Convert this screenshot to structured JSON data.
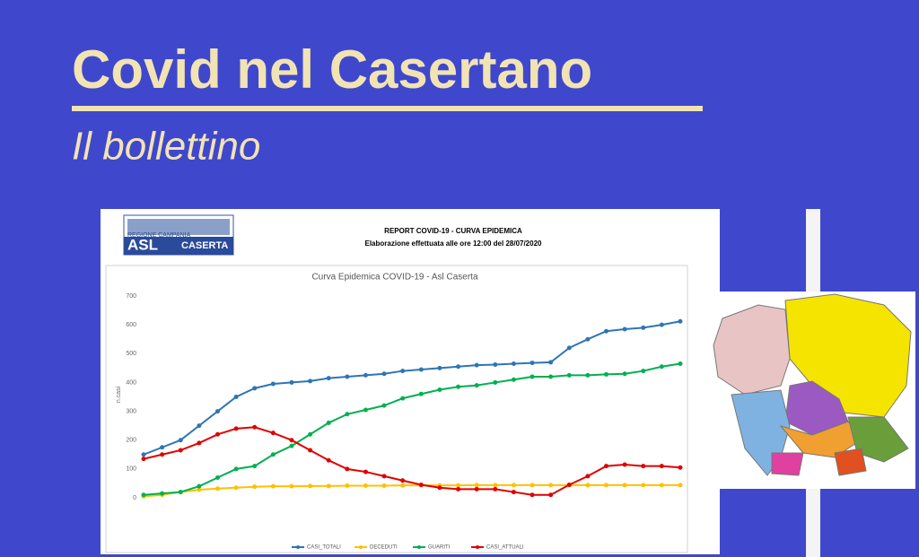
{
  "header": {
    "title": "Covid nel Casertano",
    "subtitle": "Il bollettino"
  },
  "report": {
    "logo_region": "REGIONE CAMPANIA",
    "logo_asl": "ASL",
    "logo_city": "CASERTA",
    "heading": "REPORT COVID-19 - CURVA EPIDEMICA",
    "subheading": "Elaborazione effettuata alle ore 12:00 del 28/07/2020"
  },
  "chart_data": {
    "type": "line",
    "title": "Curva Epidemica COVID-19 - Asl Caserta",
    "y_label": "n.casi",
    "categories": [
      null,
      null,
      null,
      null,
      null,
      null,
      null,
      null,
      null,
      null,
      null,
      null,
      null,
      null,
      null,
      null,
      null,
      null,
      null,
      null,
      null,
      null,
      null,
      null,
      null,
      null,
      null,
      null,
      null,
      null
    ],
    "ylim": [
      0,
      700
    ],
    "yticks": [
      0,
      100,
      200,
      300,
      400,
      500,
      600,
      700
    ],
    "grid": false,
    "legend": "bottom",
    "series": [
      {
        "name": "CASI_TOTALI",
        "color": "#2e75b6",
        "values": [
          150,
          175,
          200,
          250,
          300,
          350,
          380,
          395,
          400,
          405,
          415,
          420,
          425,
          430,
          440,
          445,
          450,
          455,
          460,
          462,
          465,
          468,
          470,
          520,
          550,
          578,
          585,
          590,
          600,
          612
        ]
      },
      {
        "name": "DECEDUTI",
        "color": "#ffc000",
        "values": [
          5,
          10,
          20,
          28,
          32,
          35,
          38,
          40,
          40,
          41,
          41,
          42,
          42,
          42,
          43,
          43,
          43,
          43,
          44,
          44,
          44,
          44,
          44,
          44,
          44,
          44,
          44,
          44,
          44,
          44
        ]
      },
      {
        "name": "GUARITI",
        "color": "#00b050",
        "values": [
          10,
          15,
          20,
          40,
          70,
          100,
          110,
          150,
          180,
          220,
          260,
          290,
          305,
          320,
          345,
          360,
          375,
          385,
          390,
          400,
          410,
          420,
          420,
          425,
          425,
          428,
          430,
          440,
          455,
          465
        ]
      },
      {
        "name": "CASI_ATTUALI",
        "color": "#e00000",
        "values": [
          135,
          150,
          165,
          190,
          220,
          240,
          245,
          225,
          200,
          165,
          130,
          100,
          90,
          75,
          60,
          45,
          35,
          30,
          30,
          30,
          20,
          10,
          10,
          45,
          75,
          110,
          115,
          110,
          110,
          105
        ]
      }
    ]
  }
}
